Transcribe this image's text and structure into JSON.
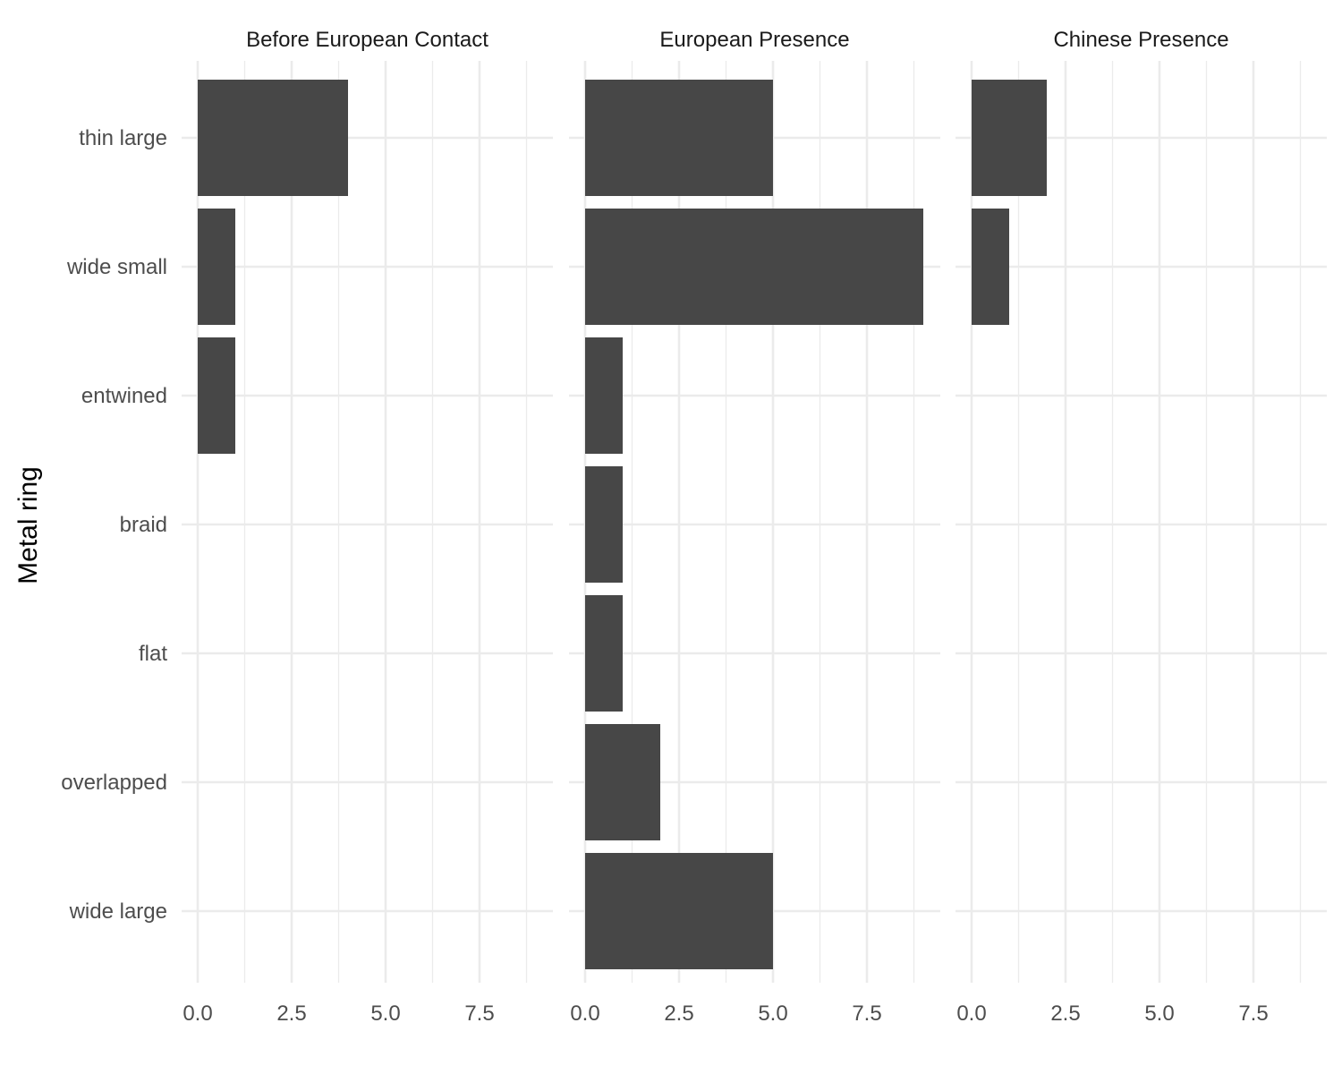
{
  "chart_data": {
    "type": "bar",
    "orientation": "horizontal",
    "ylabel": "Metal ring",
    "xlabel": "",
    "xlim": [
      0,
      9
    ],
    "x_ticks": [
      "0.0",
      "2.5",
      "5.0",
      "7.5"
    ],
    "x_tick_values": [
      0,
      2.5,
      5,
      7.5
    ],
    "grid": true,
    "categories": [
      "thin large",
      "wide small",
      "entwined",
      "braid",
      "flat",
      "overlapped",
      "wide large"
    ],
    "bar_color": "#474747",
    "grid_color": "#ebebeb",
    "facets": [
      {
        "title": "Before European Contact",
        "values": [
          4,
          1,
          1,
          0,
          0,
          0,
          0
        ]
      },
      {
        "title": "European Presence",
        "values": [
          5,
          9,
          1,
          1,
          1,
          2,
          5
        ]
      },
      {
        "title": "Chinese Presence",
        "values": [
          2,
          1,
          0,
          0,
          0,
          0,
          0
        ]
      }
    ]
  }
}
